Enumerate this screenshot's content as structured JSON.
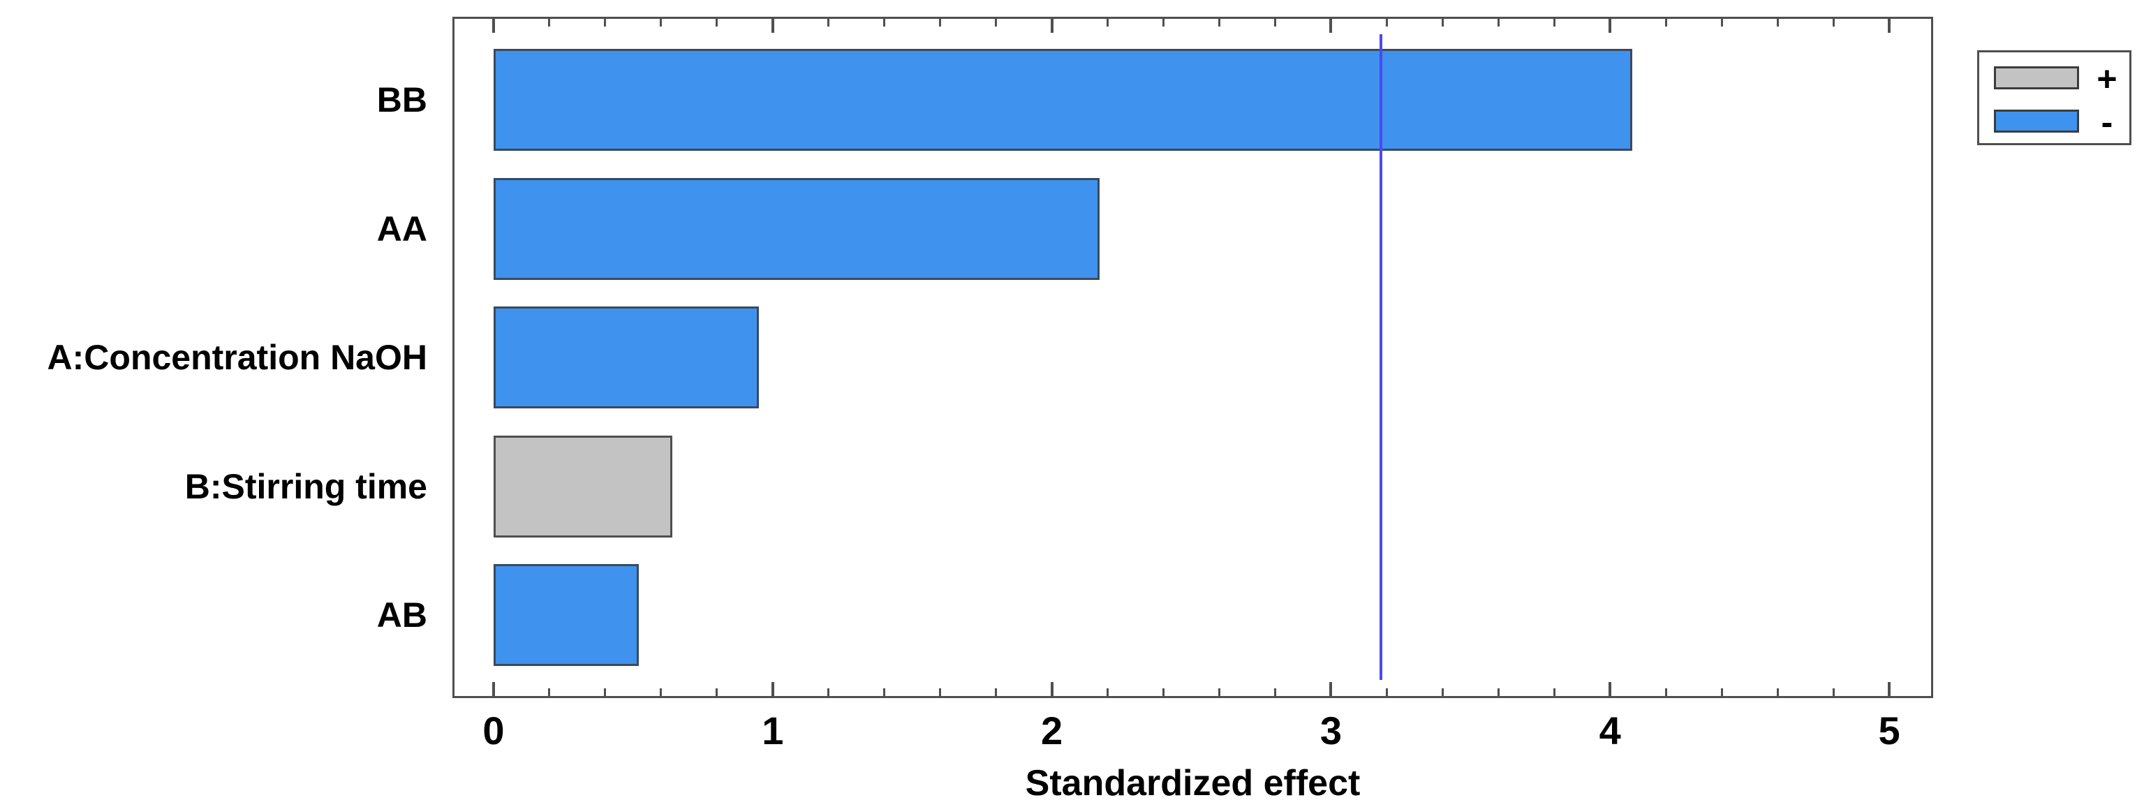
{
  "chart_data": {
    "type": "bar",
    "orientation": "horizontal",
    "title": "",
    "xlabel": "Standardized effect",
    "ylabel": "",
    "categories": [
      "BB",
      "AA",
      "A:Concentration NaOH",
      "B:Stirring time",
      "AB"
    ],
    "values": [
      4.08,
      2.17,
      0.95,
      0.64,
      0.52
    ],
    "signs": [
      "-",
      "-",
      "-",
      "+",
      "-"
    ],
    "reference_line": {
      "value": 3.18,
      "color": "#4a4af0"
    },
    "x_axis": {
      "min": -0.14,
      "max": 5.15,
      "major_ticks": [
        0,
        1,
        2,
        3,
        4,
        5
      ],
      "minor_tick_step": 0.2,
      "ticks_inside": true
    },
    "grid": false,
    "legend": {
      "position": "top-right",
      "items": [
        {
          "label": "+",
          "color": "#c3c3c3"
        },
        {
          "label": "-",
          "color": "#3f92ed"
        }
      ]
    },
    "colors": {
      "positive_bar": "#c3c3c3",
      "negative_bar": "#3f92ed",
      "bar_border_negative": "#3a4a5e",
      "bar_border_positive": "#4f4f4f",
      "axis": "#4f4f4f",
      "background": "#ffffff"
    }
  }
}
